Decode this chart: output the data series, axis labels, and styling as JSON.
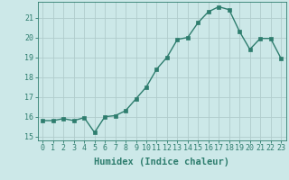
{
  "x": [
    0,
    1,
    2,
    3,
    4,
    5,
    6,
    7,
    8,
    9,
    10,
    11,
    12,
    13,
    14,
    15,
    16,
    17,
    18,
    19,
    20,
    21,
    22,
    23
  ],
  "y": [
    15.8,
    15.8,
    15.9,
    15.8,
    15.95,
    15.2,
    16.0,
    16.05,
    16.3,
    16.9,
    17.5,
    18.4,
    19.0,
    19.9,
    20.0,
    20.75,
    21.3,
    21.55,
    21.4,
    20.3,
    19.4,
    19.95,
    19.95,
    18.95
  ],
  "line_color": "#2e7d6e",
  "marker": "s",
  "markersize": 2.5,
  "linewidth": 1.0,
  "xlabel": "Humidex (Indice chaleur)",
  "xlim": [
    -0.5,
    23.5
  ],
  "ylim": [
    14.8,
    21.8
  ],
  "yticks": [
    15,
    16,
    17,
    18,
    19,
    20,
    21
  ],
  "xticks": [
    0,
    1,
    2,
    3,
    4,
    5,
    6,
    7,
    8,
    9,
    10,
    11,
    12,
    13,
    14,
    15,
    16,
    17,
    18,
    19,
    20,
    21,
    22,
    23
  ],
  "bg_color": "#cce8e8",
  "grid_color": "#b0cccc",
  "tick_fontsize": 6,
  "xlabel_fontsize": 7.5,
  "xlabel_fontweight": "bold"
}
